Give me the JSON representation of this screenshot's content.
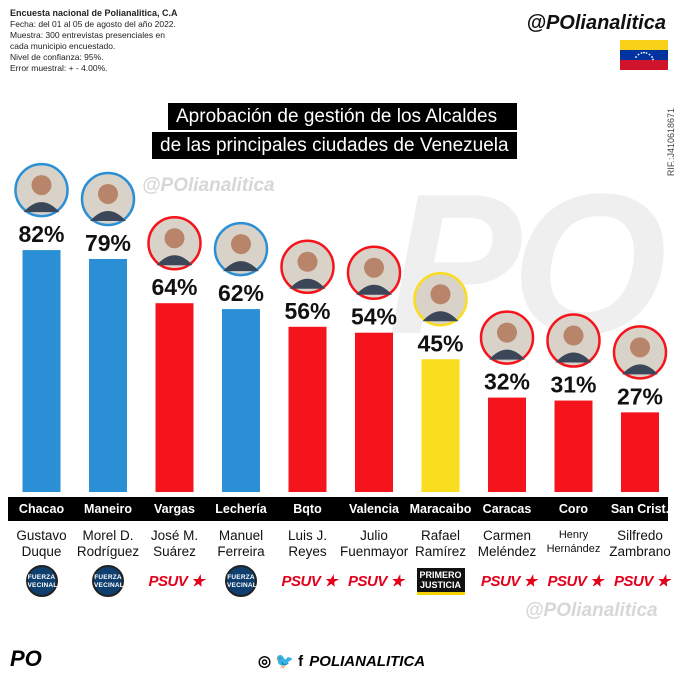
{
  "survey": {
    "org": "Encuesta nacional de Polianalitica, C.A",
    "lines": [
      "Fecha: del 01 al 05 de agosto del año 2022.",
      "Muestra: 300 entrevistas presenciales en",
      "cada municipio encuestado.",
      "Nivel de confianza: 95%.",
      "Error muestral: + - 4.00%."
    ]
  },
  "handle": "@POlianalitica",
  "rif": "RIF.:J410618671",
  "watermark": "PO",
  "colors": {
    "fuerza_vecinal": "#2a8fd4",
    "psuv": "#f5141b",
    "primero_justicia": "#f9dd1e",
    "city_bar": "#000000",
    "flag": [
      "#f7d117",
      "#0033a0",
      "#cf142b"
    ]
  },
  "chart_data": {
    "type": "bar",
    "title": [
      "Aprobación de gestión de los Alcaldes",
      "de las principales ciudades de Venezuela"
    ],
    "categories": [
      "Chacao",
      "Maneiro",
      "Vargas",
      "Lechería",
      "Bqto",
      "Valencia",
      "Maracaibo",
      "Caracas",
      "Coro",
      "San Crist."
    ],
    "values": [
      82,
      79,
      64,
      62,
      56,
      54,
      45,
      32,
      31,
      27
    ],
    "labels": [
      "82%",
      "79%",
      "64%",
      "62%",
      "56%",
      "54%",
      "45%",
      "32%",
      "31%",
      "27%"
    ],
    "mayors": [
      [
        "Gustavo",
        "Duque"
      ],
      [
        "Morel D.",
        "Rodríguez"
      ],
      [
        "José M.",
        "Suárez"
      ],
      [
        "Manuel",
        "Ferreira"
      ],
      [
        "Luis J.",
        "Reyes"
      ],
      [
        "Julio",
        "Fuenmayor"
      ],
      [
        "Rafael",
        "Ramírez"
      ],
      [
        "Carmen",
        "Meléndez"
      ],
      [
        "Henry",
        "Hernández"
      ],
      [
        "Silfredo",
        "Zambrano"
      ]
    ],
    "parties": [
      "fuerza_vecinal",
      "fuerza_vecinal",
      "psuv",
      "fuerza_vecinal",
      "psuv",
      "psuv",
      "primero_justicia",
      "psuv",
      "psuv",
      "psuv"
    ],
    "ylim": [
      0,
      100
    ],
    "grid": false,
    "legend": "none"
  },
  "party_labels": {
    "fuerza_vecinal": [
      "FUERZA",
      "VECINAL"
    ],
    "psuv": "PSUV",
    "primero_justicia": [
      "PRIMERO",
      "JUSTICIA"
    ]
  },
  "footer": {
    "logo": "PO",
    "social_icons": "◎ 🐦 f",
    "social": "POLIANALITICA"
  }
}
